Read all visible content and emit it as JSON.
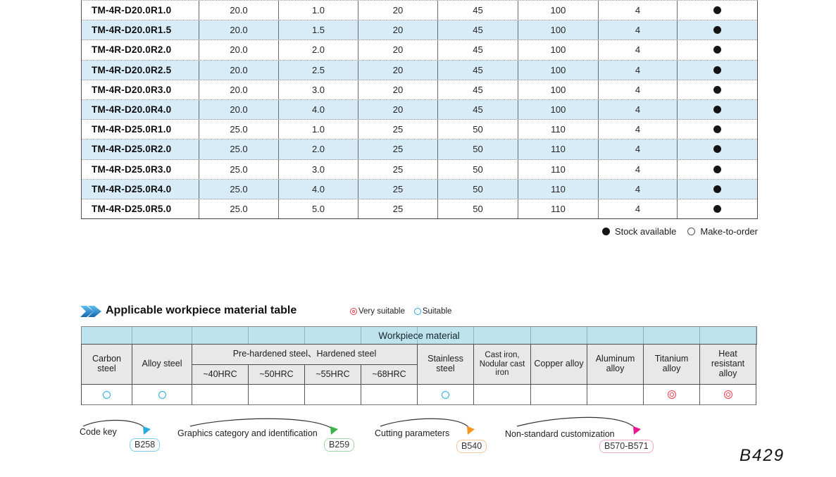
{
  "spec_table": {
    "rows": [
      {
        "model": "TM-4R-D20.0R1.0",
        "values": [
          "20.0",
          "1.0",
          "20",
          "45",
          "100",
          "4"
        ],
        "stock": "available"
      },
      {
        "model": "TM-4R-D20.0R1.5",
        "values": [
          "20.0",
          "1.5",
          "20",
          "45",
          "100",
          "4"
        ],
        "stock": "available"
      },
      {
        "model": "TM-4R-D20.0R2.0",
        "values": [
          "20.0",
          "2.0",
          "20",
          "45",
          "100",
          "4"
        ],
        "stock": "available"
      },
      {
        "model": "TM-4R-D20.0R2.5",
        "values": [
          "20.0",
          "2.5",
          "20",
          "45",
          "100",
          "4"
        ],
        "stock": "available"
      },
      {
        "model": "TM-4R-D20.0R3.0",
        "values": [
          "20.0",
          "3.0",
          "20",
          "45",
          "100",
          "4"
        ],
        "stock": "available"
      },
      {
        "model": "TM-4R-D20.0R4.0",
        "values": [
          "20.0",
          "4.0",
          "20",
          "45",
          "100",
          "4"
        ],
        "stock": "available"
      },
      {
        "model": "TM-4R-D25.0R1.0",
        "values": [
          "25.0",
          "1.0",
          "25",
          "50",
          "110",
          "4"
        ],
        "stock": "available"
      },
      {
        "model": "TM-4R-D25.0R2.0",
        "values": [
          "25.0",
          "2.0",
          "25",
          "50",
          "110",
          "4"
        ],
        "stock": "available"
      },
      {
        "model": "TM-4R-D25.0R3.0",
        "values": [
          "25.0",
          "3.0",
          "25",
          "50",
          "110",
          "4"
        ],
        "stock": "available"
      },
      {
        "model": "TM-4R-D25.0R4.0",
        "values": [
          "25.0",
          "4.0",
          "25",
          "50",
          "110",
          "4"
        ],
        "stock": "available"
      },
      {
        "model": "TM-4R-D25.0R5.0",
        "values": [
          "25.0",
          "5.0",
          "25",
          "50",
          "110",
          "4"
        ],
        "stock": "available"
      }
    ]
  },
  "stock_legend": {
    "available": "Stock available",
    "make_to_order": "Make-to-order"
  },
  "material_section": {
    "title": "Applicable workpiece material table",
    "legend": {
      "very_suitable": "Very suitable",
      "suitable": "Suitable"
    },
    "band_title": "Workpiece material",
    "headers": {
      "carbon": "Carbon steel",
      "alloy": "Alloy steel",
      "prehardened_group": "Pre-hardened steel、Hardened steel",
      "hrc": [
        "~40HRC",
        "~50HRC",
        "~55HRC",
        "~68HRC"
      ],
      "stainless": "Stainless steel",
      "cast_iron": "Cast iron, Nodular cast iron",
      "copper": "Copper alloy",
      "aluminum": "Aluminum alloy",
      "titanium": "Titanium alloy",
      "heat": "Heat resistant alloy"
    },
    "ratings": [
      "suitable",
      "suitable",
      "",
      "",
      "",
      "",
      "suitable",
      "",
      "",
      "",
      "very_suitable",
      "very_suitable"
    ]
  },
  "footer_links": [
    {
      "label": "Code key",
      "page": "B258",
      "accent": "#29abe2",
      "border": "#7ccdf0"
    },
    {
      "label": "Graphics category and identification",
      "page": "B259",
      "accent": "#3bb54a",
      "border": "#a0d8aa"
    },
    {
      "label": "Cutting parameters",
      "page": "B540",
      "accent": "#f7941d",
      "border": "#f3c896"
    },
    {
      "label": "Non-standard customization",
      "page": "B570-B571",
      "accent": "#ec168c",
      "border": "#f4a7c9"
    }
  ],
  "page_number": "B429",
  "colors": {
    "row_alt": "#d8ecf7",
    "band": "#bfe3ee",
    "header_gray": "#e8e8e8",
    "suitable": "#29abe2",
    "very_suitable": "#ef3e4a",
    "stock_dot": "#151515"
  }
}
